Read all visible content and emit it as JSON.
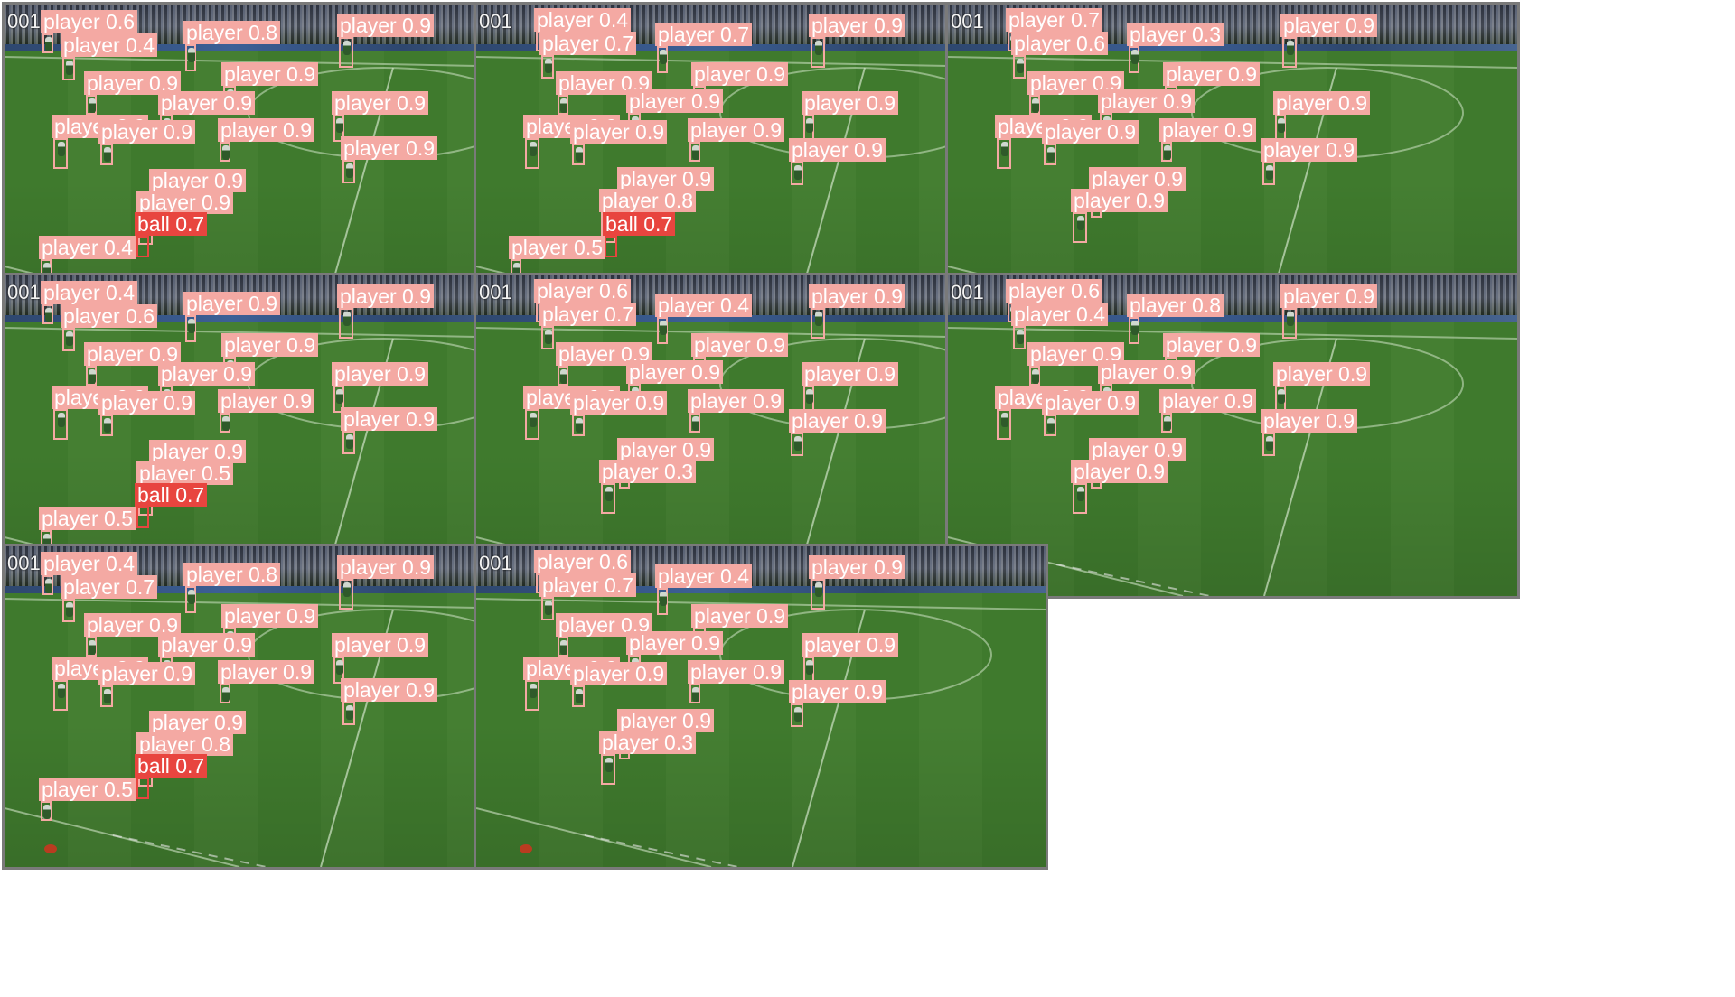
{
  "grid": {
    "background": "#ffffff",
    "label_color_player": "#f4a9a3",
    "label_color_ball": "#e8453f",
    "tiles": [
      {
        "frame_label": "001",
        "detections": [
          {
            "cls": "player",
            "conf": "0.6"
          },
          {
            "cls": "player",
            "conf": "0.4"
          },
          {
            "cls": "player",
            "conf": "0.8"
          },
          {
            "cls": "player",
            "conf": "0.9"
          },
          {
            "cls": "player",
            "conf": "0.9"
          },
          {
            "cls": "player",
            "conf": "0.9"
          },
          {
            "cls": "player",
            "conf": "0.9"
          },
          {
            "cls": "player",
            "conf": "0.9"
          },
          {
            "cls": "player",
            "conf": "0.9"
          },
          {
            "cls": "player",
            "conf": "0.9"
          },
          {
            "cls": "player",
            "conf": "0.9"
          },
          {
            "cls": "player",
            "conf": "0.9"
          },
          {
            "cls": "player",
            "conf": "0.9"
          },
          {
            "cls": "player",
            "conf": "0.9"
          },
          {
            "cls": "ball",
            "conf": "0.7"
          },
          {
            "cls": "player",
            "conf": "0.4"
          }
        ]
      },
      {
        "frame_label": "001",
        "detections": [
          {
            "cls": "player",
            "conf": "0.4"
          },
          {
            "cls": "player",
            "conf": "0.7"
          },
          {
            "cls": "player",
            "conf": "0.7"
          },
          {
            "cls": "player",
            "conf": "0.9"
          },
          {
            "cls": "player",
            "conf": "0.9"
          },
          {
            "cls": "player",
            "conf": "0.9"
          },
          {
            "cls": "player",
            "conf": "0.9"
          },
          {
            "cls": "player",
            "conf": "0.9"
          },
          {
            "cls": "player",
            "conf": "0.9"
          },
          {
            "cls": "player",
            "conf": "0.9"
          },
          {
            "cls": "player",
            "conf": "0.9"
          },
          {
            "cls": "player",
            "conf": "0.9"
          },
          {
            "cls": "player",
            "conf": "0.9"
          },
          {
            "cls": "player",
            "conf": "0.8"
          },
          {
            "cls": "ball",
            "conf": "0.7"
          },
          {
            "cls": "player",
            "conf": "0.5"
          }
        ]
      },
      {
        "frame_label": "001",
        "detections": [
          {
            "cls": "player",
            "conf": "0.7"
          },
          {
            "cls": "player",
            "conf": "0.6"
          },
          {
            "cls": "player",
            "conf": "0.3"
          },
          {
            "cls": "player",
            "conf": "0.9"
          },
          {
            "cls": "player",
            "conf": "0.9"
          },
          {
            "cls": "player",
            "conf": "0.9"
          },
          {
            "cls": "player",
            "conf": "0.9"
          },
          {
            "cls": "player",
            "conf": "0.9"
          },
          {
            "cls": "player",
            "conf": "0.9"
          },
          {
            "cls": "player",
            "conf": "0.9"
          },
          {
            "cls": "player",
            "conf": "0.9"
          },
          {
            "cls": "player",
            "conf": "0.9"
          },
          {
            "cls": "player",
            "conf": "0.9"
          },
          {
            "cls": "player",
            "conf": "0.9"
          }
        ]
      },
      {
        "frame_label": "001",
        "detections": [
          {
            "cls": "player",
            "conf": "0.4"
          },
          {
            "cls": "player",
            "conf": "0.6"
          },
          {
            "cls": "player",
            "conf": "0.9"
          },
          {
            "cls": "player",
            "conf": "0.9"
          },
          {
            "cls": "player",
            "conf": "0.9"
          },
          {
            "cls": "player",
            "conf": "0.9"
          },
          {
            "cls": "player",
            "conf": "0.9"
          },
          {
            "cls": "player",
            "conf": "0.9"
          },
          {
            "cls": "player",
            "conf": "0.9"
          },
          {
            "cls": "player",
            "conf": "0.9"
          },
          {
            "cls": "player",
            "conf": "0.9"
          },
          {
            "cls": "player",
            "conf": "0.9"
          },
          {
            "cls": "player",
            "conf": "0.9"
          },
          {
            "cls": "player",
            "conf": "0.5"
          },
          {
            "cls": "ball",
            "conf": "0.7"
          },
          {
            "cls": "player",
            "conf": "0.5"
          }
        ]
      },
      {
        "frame_label": "001",
        "detections": [
          {
            "cls": "player",
            "conf": "0.6"
          },
          {
            "cls": "player",
            "conf": "0.7"
          },
          {
            "cls": "player",
            "conf": "0.4"
          },
          {
            "cls": "player",
            "conf": "0.9"
          },
          {
            "cls": "player",
            "conf": "0.9"
          },
          {
            "cls": "player",
            "conf": "0.9"
          },
          {
            "cls": "player",
            "conf": "0.9"
          },
          {
            "cls": "player",
            "conf": "0.9"
          },
          {
            "cls": "player",
            "conf": "0.9"
          },
          {
            "cls": "player",
            "conf": "0.9"
          },
          {
            "cls": "player",
            "conf": "0.9"
          },
          {
            "cls": "player",
            "conf": "0.9"
          },
          {
            "cls": "player",
            "conf": "0.9"
          },
          {
            "cls": "player",
            "conf": "0.3"
          }
        ]
      },
      {
        "frame_label": "001",
        "detections": [
          {
            "cls": "player",
            "conf": "0.6"
          },
          {
            "cls": "player",
            "conf": "0.4"
          },
          {
            "cls": "player",
            "conf": "0.8"
          },
          {
            "cls": "player",
            "conf": "0.9"
          },
          {
            "cls": "player",
            "conf": "0.9"
          },
          {
            "cls": "player",
            "conf": "0.9"
          },
          {
            "cls": "player",
            "conf": "0.9"
          },
          {
            "cls": "player",
            "conf": "0.9"
          },
          {
            "cls": "player",
            "conf": "0.9"
          },
          {
            "cls": "player",
            "conf": "0.9"
          },
          {
            "cls": "player",
            "conf": "0.9"
          },
          {
            "cls": "player",
            "conf": "0.9"
          },
          {
            "cls": "player",
            "conf": "0.9"
          },
          {
            "cls": "player",
            "conf": "0.9"
          }
        ]
      },
      {
        "frame_label": "001",
        "detections": [
          {
            "cls": "player",
            "conf": "0.4"
          },
          {
            "cls": "player",
            "conf": "0.7"
          },
          {
            "cls": "player",
            "conf": "0.8"
          },
          {
            "cls": "player",
            "conf": "0.9"
          },
          {
            "cls": "player",
            "conf": "0.9"
          },
          {
            "cls": "player",
            "conf": "0.9"
          },
          {
            "cls": "player",
            "conf": "0.9"
          },
          {
            "cls": "player",
            "conf": "0.9"
          },
          {
            "cls": "player",
            "conf": "0.9"
          },
          {
            "cls": "player",
            "conf": "0.9"
          },
          {
            "cls": "player",
            "conf": "0.9"
          },
          {
            "cls": "player",
            "conf": "0.9"
          },
          {
            "cls": "player",
            "conf": "0.9"
          },
          {
            "cls": "player",
            "conf": "0.8"
          },
          {
            "cls": "ball",
            "conf": "0.7"
          },
          {
            "cls": "player",
            "conf": "0.5"
          }
        ]
      },
      {
        "frame_label": "001",
        "detections": [
          {
            "cls": "player",
            "conf": "0.6"
          },
          {
            "cls": "player",
            "conf": "0.7"
          },
          {
            "cls": "player",
            "conf": "0.4"
          },
          {
            "cls": "player",
            "conf": "0.9"
          },
          {
            "cls": "player",
            "conf": "0.9"
          },
          {
            "cls": "player",
            "conf": "0.9"
          },
          {
            "cls": "player",
            "conf": "0.9"
          },
          {
            "cls": "player",
            "conf": "0.9"
          },
          {
            "cls": "player",
            "conf": "0.9"
          },
          {
            "cls": "player",
            "conf": "0.9"
          },
          {
            "cls": "player",
            "conf": "0.9"
          },
          {
            "cls": "player",
            "conf": "0.9"
          },
          {
            "cls": "player",
            "conf": "0.9"
          },
          {
            "cls": "player",
            "conf": "0.3"
          }
        ]
      }
    ]
  }
}
